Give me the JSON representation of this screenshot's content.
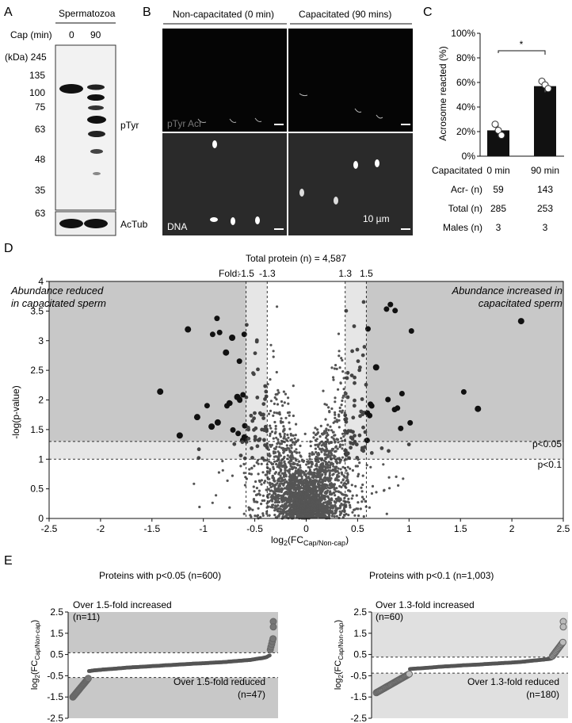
{
  "panelA": {
    "label": "A",
    "header": "Spermatozoa",
    "cap_label": "Cap (min)",
    "lanes": [
      "0",
      "90"
    ],
    "kda_label": "(kDa) 245",
    "markers": [
      "135",
      "100",
      "75",
      "63",
      "48",
      "35"
    ],
    "marker_bottom": "63",
    "ptyr": "pTyr",
    "actub": "AcTub"
  },
  "panelB": {
    "label": "B",
    "col1": "Non-capacitated (0 min)",
    "col2": "Capacitated (90 mins)",
    "overlay": "pTyr Acr",
    "dna": "DNA",
    "scale": "10 µm"
  },
  "panelC": {
    "label": "C",
    "ylabel": "Acrosome reacted (%)",
    "yticks": [
      "0%",
      "20%",
      "40%",
      "60%",
      "80%",
      "100%"
    ],
    "sig": "*",
    "table": [
      {
        "h": "Capacitated",
        "a": "0 min",
        "b": "90 min"
      },
      {
        "h": "Acr- (n)",
        "a": "59",
        "b": "143"
      },
      {
        "h": "Total (n)",
        "a": "285",
        "b": "253"
      },
      {
        "h": "Males (n)",
        "a": "3",
        "b": "3"
      }
    ]
  },
  "panelD": {
    "label": "D",
    "title": "Total protein (n) = 4,587",
    "fold_label": "Fold:",
    "folds": [
      "-1.5",
      "-1.3",
      "1.3",
      "1.5"
    ],
    "reduced1": "Abundance reduced",
    "reduced2": "in capacitated sperm",
    "increased1": "Abundance increased in",
    "increased2": "capacitated sperm",
    "p05": "p<0.05",
    "p01": "p<0.1",
    "ylabel": "-log(p-value)",
    "xlabel_main": "log",
    "xlabel_sub": "2",
    "xlabel_rest": "(FC",
    "xlabel_subsc": "Cap/Non-cap",
    "xlabel_end": ")",
    "xticks": [
      "-2.5",
      "-2",
      "-1.5",
      "-1",
      "-0.5",
      "0",
      "0.5",
      "1",
      "1.5",
      "2",
      "2.5"
    ],
    "yticks": [
      "0",
      "0.5",
      "1",
      "1.5",
      "2",
      "2.5",
      "3",
      "3.5",
      "4"
    ]
  },
  "panelE": {
    "label": "E",
    "left_title": "Proteins with p<0.05 (n=600)",
    "right_title": "Proteins with p<0.1 (n=1,003)",
    "left_up": "Over 1.5-fold increased",
    "left_up_n": "(n=11)",
    "left_down": "Over 1.5-fold reduced",
    "left_down_n": "(n=47)",
    "right_up": "Over 1.3-fold increased",
    "right_up_n": "(n=60)",
    "right_down": "Over 1.3-fold reduced",
    "right_down_n": "(n=180)",
    "ylabel_main": "log",
    "ylabel_sub": "2",
    "ylabel_rest": "(FC",
    "ylabel_subsc": "Cap/Non-cap",
    "ylabel_end": ")",
    "yticks": [
      "2.5",
      "1.5",
      "0.5",
      "-0.5",
      "-1.5",
      "-2.5"
    ]
  },
  "chart_data": [
    {
      "type": "bar",
      "title": "",
      "categories": [
        "0 min",
        "90 min"
      ],
      "values": [
        21,
        57
      ],
      "ylabel": "Acrosome reacted (%)",
      "ylim": [
        0,
        100
      ]
    },
    {
      "type": "scatter",
      "title": "Total protein (n) = 4,587",
      "xlabel": "log2(FC Cap/Non-cap)",
      "ylabel": "-log(p-value)",
      "xlim": [
        -2.5,
        2.5
      ],
      "ylim": [
        0,
        4
      ],
      "thresholds_x": [
        -0.585,
        -0.379,
        0.379,
        0.585
      ],
      "thresholds_y": [
        1,
        1.3
      ],
      "highlight_points": [
        {
          "x": 2.09,
          "y": 3.33
        },
        {
          "x": 1.67,
          "y": 1.85
        },
        {
          "x": 0.68,
          "y": 2.55
        },
        {
          "x": -1.15,
          "y": 3.19
        },
        {
          "x": -1.42,
          "y": 2.14
        },
        {
          "x": -0.72,
          "y": 3.05
        },
        {
          "x": -0.78,
          "y": 2.8
        },
        {
          "x": -0.92,
          "y": 1.55
        },
        {
          "x": -0.86,
          "y": 1.62
        },
        {
          "x": -1.23,
          "y": 1.4
        },
        {
          "x": -1.06,
          "y": 1.71
        },
        {
          "x": -0.67,
          "y": 2.05
        }
      ]
    },
    {
      "type": "scatter",
      "title": "Proteins with p<0.05 (n=600)",
      "ylabel": "log2(FC Cap/Non-cap)",
      "ylim": [
        -2.5,
        2.5
      ],
      "n": 600
    },
    {
      "type": "scatter",
      "title": "Proteins with p<0.1 (n=1,003)",
      "ylabel": "log2(FC Cap/Non-cap)",
      "ylim": [
        -2.5,
        2.5
      ],
      "n": 1003
    }
  ]
}
